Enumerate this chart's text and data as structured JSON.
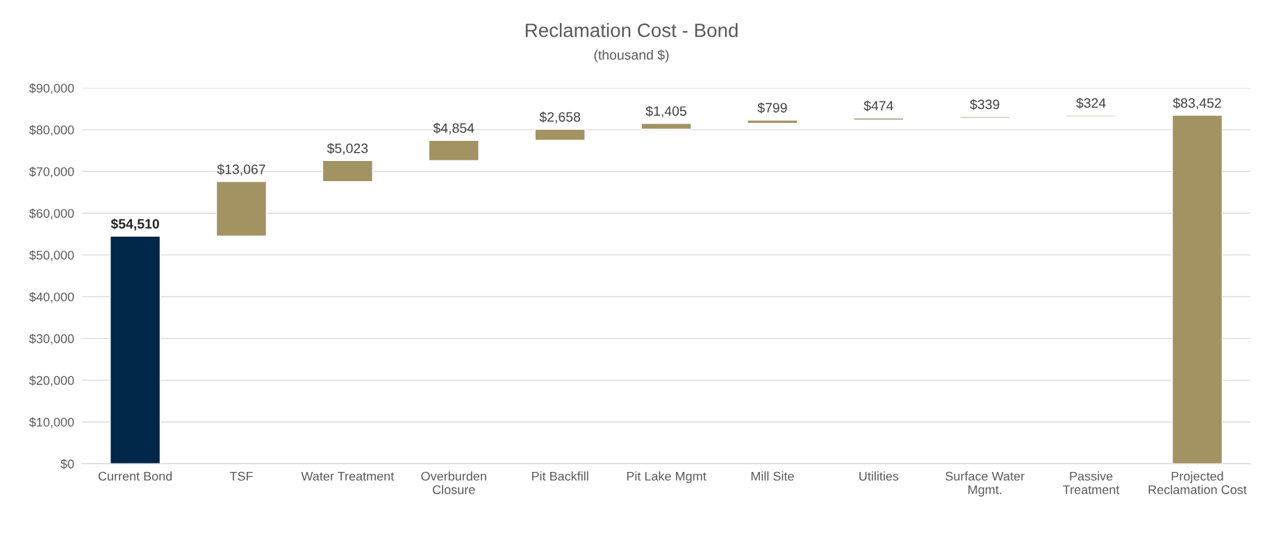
{
  "chart_data": {
    "type": "bar",
    "title": "Reclamation Cost - Bond",
    "subtitle": "(thousand $)",
    "categories": [
      "Current Bond",
      "TSF",
      "Water Treatment",
      "Overburden\nClosure",
      "Pit Backfill",
      "Pit Lake Mgmt",
      "Mill Site",
      "Utilities",
      "Surface Water\nMgmt.",
      "Passive\nTreatment",
      "Projected\nReclamation Cost"
    ],
    "values": [
      54510,
      13067,
      5023,
      4854,
      2658,
      1405,
      799,
      474,
      339,
      324,
      83452
    ],
    "base": [
      0,
      54510,
      67577,
      72600,
      77454,
      80112,
      81517,
      82316,
      82790,
      83129,
      0
    ],
    "colors": [
      "#002649",
      "#a39262",
      "#a39262",
      "#a39262",
      "#a39262",
      "#a39262",
      "#a39262",
      "#a39262",
      "#a39262",
      "#a39262",
      "#a39262"
    ],
    "value_labels": [
      "$54,510",
      "$13,067",
      "$5,023",
      "$4,854",
      "$2,658",
      "$1,405",
      "$799",
      "$474",
      "$339",
      "$324",
      "$83,452"
    ],
    "ylim": [
      0,
      90000
    ],
    "yticks": [
      {
        "value": 0,
        "label": "$0"
      },
      {
        "value": 10000,
        "label": "$10,000"
      },
      {
        "value": 20000,
        "label": "$20,000"
      },
      {
        "value": 30000,
        "label": "$30,000"
      },
      {
        "value": 40000,
        "label": "$40,000"
      },
      {
        "value": 50000,
        "label": "$50,000"
      },
      {
        "value": 60000,
        "label": "$60,000"
      },
      {
        "value": 70000,
        "label": "$70,000"
      },
      {
        "value": 80000,
        "label": "$80,000"
      },
      {
        "value": 90000,
        "label": "$90,000"
      }
    ],
    "grid": "y",
    "legend": false
  }
}
